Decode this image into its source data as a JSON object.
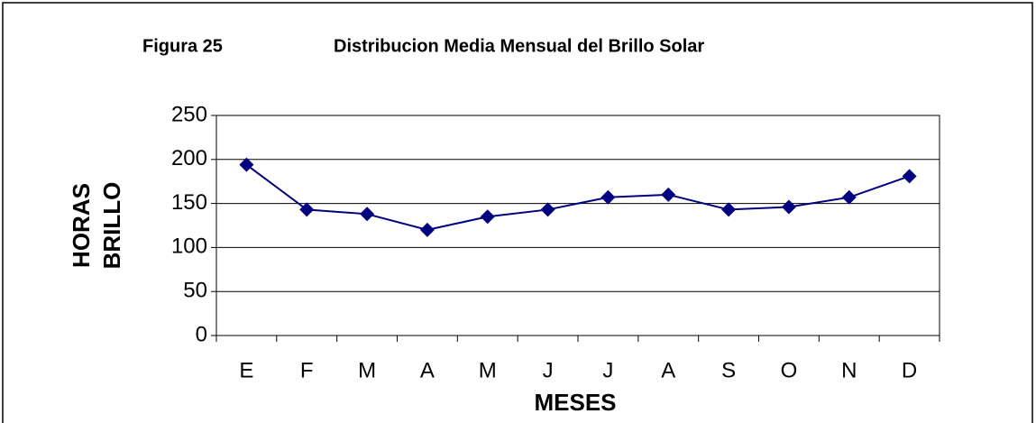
{
  "chart_data": {
    "type": "line",
    "figure_label": "Figura 25",
    "title": "Distribucion Media Mensual del Brillo Solar",
    "xlabel": "MESES",
    "ylabel": [
      "HORAS",
      "BRILLO"
    ],
    "categories": [
      "E",
      "F",
      "M",
      "A",
      "M",
      "J",
      "J",
      "A",
      "S",
      "O",
      "N",
      "D"
    ],
    "values": [
      194,
      143,
      138,
      120,
      135,
      143,
      157,
      160,
      143,
      146,
      157,
      181
    ],
    "color": "#000080",
    "ylim": [
      0,
      250
    ],
    "yticks": [
      0,
      50,
      100,
      150,
      200,
      250
    ],
    "grid": true
  }
}
